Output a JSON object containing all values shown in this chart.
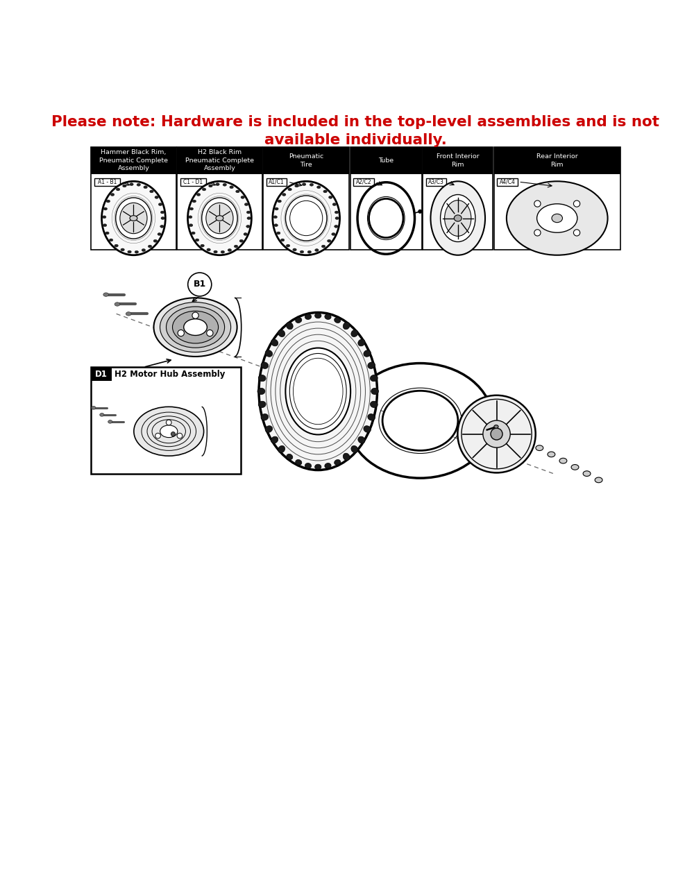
{
  "title_line1": "Please note: Hardware is included in the top-level assemblies and is not",
  "title_line2": "available individually.",
  "title_color": "#cc0000",
  "title_fontsize": 15.5,
  "bg_color": "#ffffff",
  "panel_headers": [
    "Hammer Black Rim,\nPneumatic Complete\nAssembly",
    "H2 Black Rim\nPneumatic Complete\nAssembly",
    "Pneumatic\nTire",
    "Tube",
    "Front Interior\nRim",
    "Rear Interior\nRim"
  ],
  "panel_codes": [
    "A1 - B1",
    "C1 - D1",
    "A1/C1",
    "A2/C2",
    "A3/C3",
    "A4/C4"
  ],
  "panel_header_bg": "#000000",
  "panel_header_color": "#ffffff",
  "panel_border_color": "#000000",
  "callout_label": "B1",
  "inset_label_d1": "D1",
  "inset_label_text": "H2 Motor Hub Assembly"
}
